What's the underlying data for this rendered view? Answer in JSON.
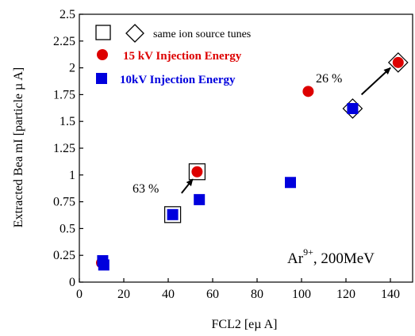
{
  "chart_data": {
    "type": "scatter",
    "xlabel": "FCL2 [eµ A]",
    "ylabel": "Extracted Bea mI [particle µ A]",
    "xlim": [
      0,
      150
    ],
    "ylim": [
      0,
      2.5
    ],
    "x_ticks": [
      "0",
      "20",
      "40",
      "60",
      "80",
      "100",
      "120",
      "140"
    ],
    "y_ticks": [
      "0",
      "0.25",
      "0.5",
      "0.75",
      "1",
      "1.25",
      "1.5",
      "1.75",
      "2",
      "2.25",
      "2.5"
    ],
    "grid": false,
    "legend_position": "top-left",
    "legend": {
      "tunes_label": "same ion source tunes",
      "series_15kv_label": "15 kV Injection Energy",
      "series_10kv_label": "10kV Injection Energy"
    },
    "series": [
      {
        "name": "15 kV Injection Energy",
        "marker": "circle",
        "color": "#dd0000",
        "points": [
          {
            "x": 10,
            "y": 0.18
          },
          {
            "x": 53,
            "y": 1.03
          },
          {
            "x": 103,
            "y": 1.78
          },
          {
            "x": 143.5,
            "y": 2.05
          }
        ]
      },
      {
        "name": "10kV Injection Energy",
        "marker": "square",
        "color": "#0000dd",
        "points": [
          {
            "x": 10.5,
            "y": 0.2
          },
          {
            "x": 11,
            "y": 0.16
          },
          {
            "x": 42,
            "y": 0.63
          },
          {
            "x": 54,
            "y": 0.77
          },
          {
            "x": 95,
            "y": 0.93
          },
          {
            "x": 123,
            "y": 1.62
          }
        ]
      }
    ],
    "same_tune_squares": [
      {
        "x": 42,
        "y": 0.63
      },
      {
        "x": 53,
        "y": 1.03
      }
    ],
    "same_tune_diamonds": [
      {
        "x": 123,
        "y": 1.62
      },
      {
        "x": 143.5,
        "y": 2.05
      }
    ],
    "arrows": [
      {
        "from": {
          "x": 46,
          "y": 0.83
        },
        "to": {
          "x": 51,
          "y": 0.96
        }
      },
      {
        "from": {
          "x": 127,
          "y": 1.75
        },
        "to": {
          "x": 140,
          "y": 2.0
        }
      }
    ],
    "annotations": {
      "pct_left": "63 %",
      "pct_right": "26 %",
      "ion_label": "Ar",
      "ion_charge": "9+",
      "ion_energy": ", 200MeV"
    }
  }
}
